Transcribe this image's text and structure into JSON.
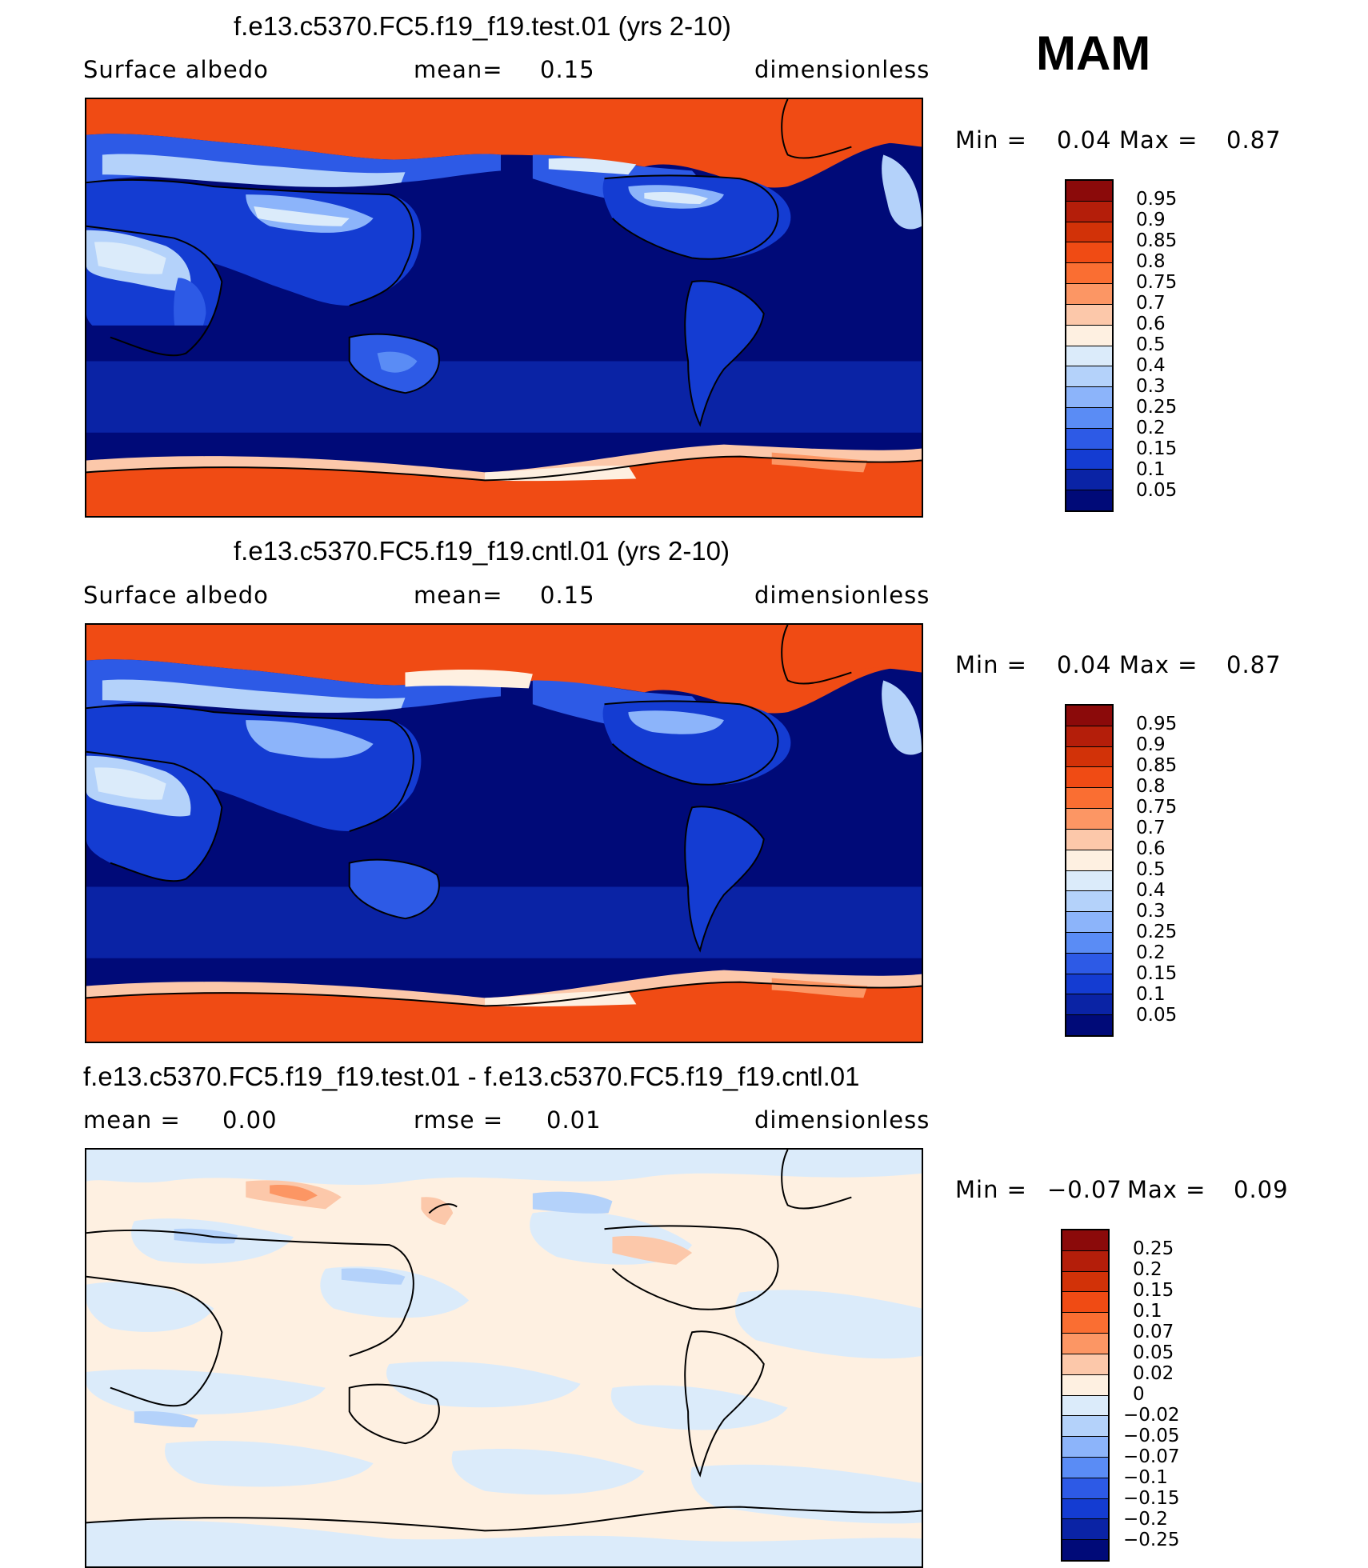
{
  "season": "MAM",
  "panels": [
    {
      "title": "f.e13.c5370.FC5.f19_f19.test.01 (yrs 2-10)",
      "left_label": "Surface albedo",
      "stat_label": "mean=",
      "stat_value": "0.15",
      "right_label": "dimensionless",
      "min_label": "Min =",
      "min_value": "0.04",
      "max_label": "Max =",
      "max_value": "0.87"
    },
    {
      "title": "f.e13.c5370.FC5.f19_f19.cntl.01 (yrs 2-10)",
      "left_label": "Surface albedo",
      "stat_label": "mean=",
      "stat_value": "0.15",
      "right_label": "dimensionless",
      "min_label": "Min =",
      "min_value": "0.04",
      "max_label": "Max =",
      "max_value": "0.87"
    },
    {
      "title": "f.e13.c5370.FC5.f19_f19.test.01 - f.e13.c5370.FC5.f19_f19.cntl.01",
      "left_label": "mean =",
      "left_value": "0.00",
      "stat_label": "rmse =",
      "stat_value": "0.01",
      "right_label": "dimensionless",
      "min_label": "Min =",
      "min_value": "−0.07",
      "max_label": "Max =",
      "max_value": "0.09"
    }
  ],
  "colorbar_abs": {
    "labels": [
      "0.95",
      "0.9",
      "0.85",
      "0.8",
      "0.75",
      "0.7",
      "0.6",
      "0.5",
      "0.4",
      "0.3",
      "0.25",
      "0.2",
      "0.15",
      "0.1",
      "0.05"
    ],
    "colors": [
      "#8b0a0a",
      "#b41e0a",
      "#d23208",
      "#f04b14",
      "#fa6e32",
      "#fc9664",
      "#fcc8aa",
      "#fef0e1",
      "#dbebfa",
      "#b4d2fa",
      "#8cb4fa",
      "#5a8cf5",
      "#2d5ae6",
      "#143cd2",
      "#0a23a5",
      "#000a78"
    ]
  },
  "colorbar_diff": {
    "labels": [
      "0.25",
      "0.2",
      "0.15",
      "0.1",
      "0.07",
      "0.05",
      "0.02",
      "0",
      "−0.02",
      "−0.05",
      "−0.07",
      "−0.1",
      "−0.15",
      "−0.2",
      "−0.25"
    ],
    "colors": [
      "#8b0a0a",
      "#b41e0a",
      "#d23208",
      "#f04b14",
      "#fa6e32",
      "#fc9664",
      "#fcc8aa",
      "#fef0e1",
      "#dbebfa",
      "#b4d2fa",
      "#8cb4fa",
      "#5a8cf5",
      "#2d5ae6",
      "#143cd2",
      "#0a23a5",
      "#000a78"
    ]
  }
}
